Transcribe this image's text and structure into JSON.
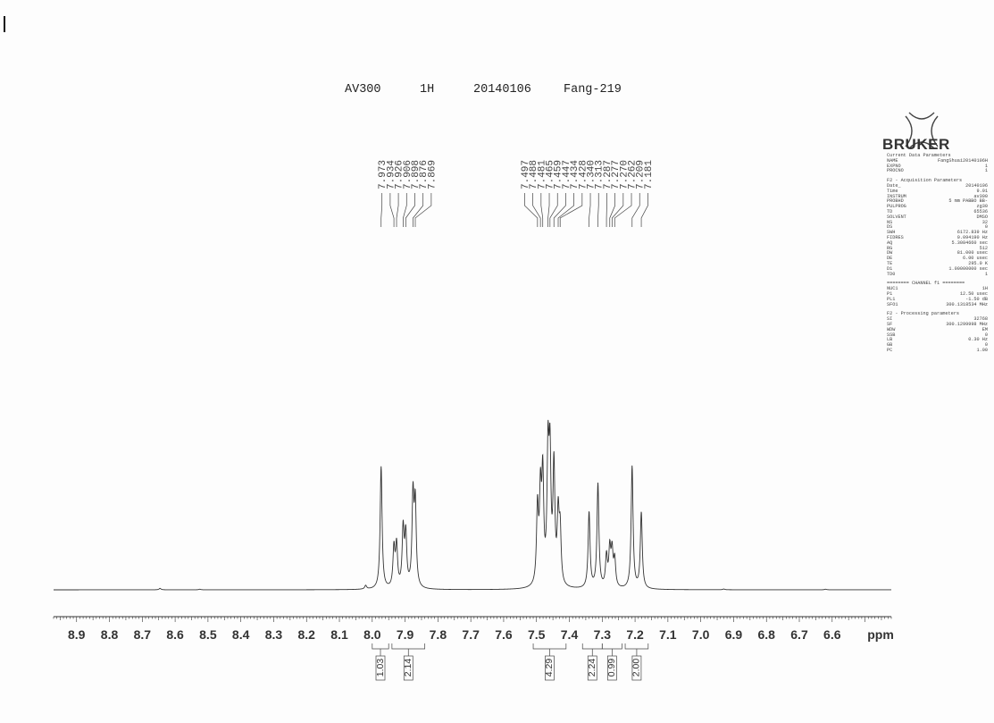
{
  "header": {
    "instrument": "AV300",
    "nucleus": "1H",
    "date": "20140106",
    "sample": "Fang-219"
  },
  "brand": {
    "logo_text": "BRUKER"
  },
  "parameters": {
    "current": {
      "heading": "Current Data Parameters",
      "rows": [
        {
          "k": "NAME",
          "v": "FangShuai20140106H"
        },
        {
          "k": "EXPNO",
          "v": "1"
        },
        {
          "k": "PROCNO",
          "v": "1"
        }
      ]
    },
    "acquisition": {
      "heading": "F2 - Acquisition Parameters",
      "rows": [
        {
          "k": "Date_",
          "v": "20140106"
        },
        {
          "k": "Time",
          "v": "9.91"
        },
        {
          "k": "INSTRUM",
          "v": "av300"
        },
        {
          "k": "PROBHD",
          "v": "5 mm PABBO BB-"
        },
        {
          "k": "PULPROG",
          "v": "zg30"
        },
        {
          "k": "TD",
          "v": "65536"
        },
        {
          "k": "SOLVENT",
          "v": "DMSO"
        },
        {
          "k": "NS",
          "v": "32"
        },
        {
          "k": "DS",
          "v": "0"
        },
        {
          "k": "SWH",
          "v": "6172.839 Hz"
        },
        {
          "k": "FIDRES",
          "v": "0.094190 Hz"
        },
        {
          "k": "AQ",
          "v": "5.3084660 sec"
        },
        {
          "k": "RG",
          "v": "512"
        },
        {
          "k": "DW",
          "v": "81.000 usec"
        },
        {
          "k": "DE",
          "v": "6.00 usec"
        },
        {
          "k": "TE",
          "v": "295.0 K"
        },
        {
          "k": "D1",
          "v": "1.00000000 sec"
        },
        {
          "k": "TD0",
          "v": "1"
        }
      ]
    },
    "channel": {
      "heading": "======== CHANNEL f1 ========",
      "rows": [
        {
          "k": "NUC1",
          "v": "1H"
        },
        {
          "k": "P1",
          "v": "12.50 usec"
        },
        {
          "k": "PL1",
          "v": "-1.50 dB"
        },
        {
          "k": "SFO1",
          "v": "300.1318534 MHz"
        }
      ]
    },
    "processing": {
      "heading": "F2 - Processing parameters",
      "rows": [
        {
          "k": "SI",
          "v": "32768"
        },
        {
          "k": "SF",
          "v": "300.1299998 MHz"
        },
        {
          "k": "WDW",
          "v": "EM"
        },
        {
          "k": "SSB",
          "v": "0"
        },
        {
          "k": "LB",
          "v": "0.30 Hz"
        },
        {
          "k": "GB",
          "v": "0"
        },
        {
          "k": "PC",
          "v": "1.00"
        }
      ]
    }
  },
  "chart_data": {
    "type": "line",
    "xlabel": "ppm",
    "xlim": [
      8.97,
      6.42
    ],
    "x_reversed": true,
    "tick_labels": [
      "8.9",
      "8.8",
      "8.7",
      "8.6",
      "8.5",
      "8.4",
      "8.3",
      "8.2",
      "8.1",
      "8.0",
      "7.9",
      "7.8",
      "7.7",
      "7.6",
      "7.5",
      "7.4",
      "7.3",
      "7.2",
      "7.1",
      "7.0",
      "6.9",
      "6.8",
      "6.7",
      "6.6"
    ],
    "peak_groups": [
      {
        "labels": [
          "7.973",
          "7.934",
          "7.926",
          "7.906",
          "7.898",
          "7.876",
          "7.869"
        ]
      },
      {
        "labels": [
          "7.497",
          "7.488",
          "7.481",
          "7.465",
          "7.459",
          "7.447",
          "7.434",
          "7.428",
          "7.340",
          "7.313",
          "7.287",
          "7.277",
          "7.270",
          "7.262",
          "7.209",
          "7.181"
        ]
      }
    ],
    "peaks": [
      {
        "ppm": 8.646,
        "h": 0.012
      },
      {
        "ppm": 8.525,
        "h": 0.005
      },
      {
        "ppm": 8.02,
        "h": 0.03
      },
      {
        "ppm": 7.973,
        "h": 1.0
      },
      {
        "ppm": 7.934,
        "h": 0.32
      },
      {
        "ppm": 7.926,
        "h": 0.34
      },
      {
        "ppm": 7.906,
        "h": 0.47
      },
      {
        "ppm": 7.898,
        "h": 0.42
      },
      {
        "ppm": 7.876,
        "h": 0.73
      },
      {
        "ppm": 7.869,
        "h": 0.66
      },
      {
        "ppm": 7.497,
        "h": 0.62
      },
      {
        "ppm": 7.488,
        "h": 0.7
      },
      {
        "ppm": 7.481,
        "h": 0.85
      },
      {
        "ppm": 7.465,
        "h": 1.02
      },
      {
        "ppm": 7.459,
        "h": 0.97
      },
      {
        "ppm": 7.447,
        "h": 0.95
      },
      {
        "ppm": 7.434,
        "h": 0.55
      },
      {
        "ppm": 7.428,
        "h": 0.42
      },
      {
        "ppm": 7.34,
        "h": 0.62
      },
      {
        "ppm": 7.313,
        "h": 0.85
      },
      {
        "ppm": 7.287,
        "h": 0.25
      },
      {
        "ppm": 7.277,
        "h": 0.3
      },
      {
        "ppm": 7.27,
        "h": 0.28
      },
      {
        "ppm": 7.262,
        "h": 0.22
      },
      {
        "ppm": 7.209,
        "h": 1.0
      },
      {
        "ppm": 7.181,
        "h": 0.62
      },
      {
        "ppm": 6.93,
        "h": 0.006
      },
      {
        "ppm": 6.62,
        "h": 0.005
      }
    ],
    "integrals": [
      {
        "from": 8.0,
        "to": 7.95,
        "value": "1.03"
      },
      {
        "from": 7.94,
        "to": 7.84,
        "value": "2.14"
      },
      {
        "from": 7.51,
        "to": 7.41,
        "value": "4.29"
      },
      {
        "from": 7.36,
        "to": 7.3,
        "value": "2.24"
      },
      {
        "from": 7.3,
        "to": 7.24,
        "value": "0.99"
      },
      {
        "from": 7.23,
        "to": 7.16,
        "value": "2.00"
      }
    ]
  }
}
